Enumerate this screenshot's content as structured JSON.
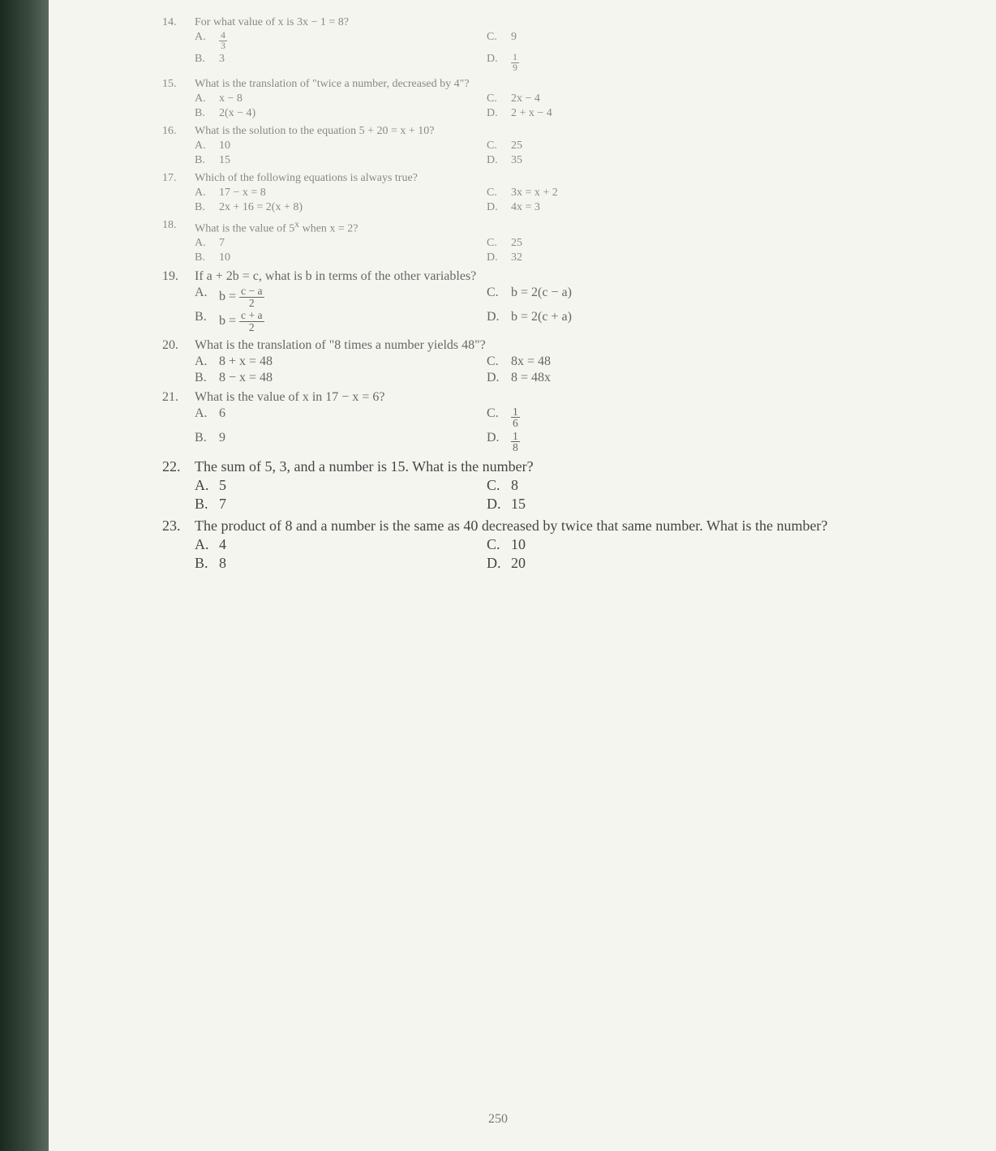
{
  "page_number": "250",
  "questions": [
    {
      "num": "14.",
      "text": "For what value of x is 3x − 1 = 8?",
      "choices": {
        "A": {
          "type": "frac",
          "num": "4",
          "den": "3"
        },
        "B": {
          "type": "text",
          "val": "3"
        },
        "C": {
          "type": "text",
          "val": "9"
        },
        "D": {
          "type": "frac",
          "num": "1",
          "den": "9"
        }
      },
      "class": "early"
    },
    {
      "num": "15.",
      "text": "What is the translation of \"twice a number, decreased by 4\"?",
      "choices": {
        "A": {
          "type": "text",
          "val": "x − 8"
        },
        "B": {
          "type": "text",
          "val": "2(x − 4)"
        },
        "C": {
          "type": "text",
          "val": "2x − 4"
        },
        "D": {
          "type": "text",
          "val": "2 + x − 4"
        }
      },
      "class": "early"
    },
    {
      "num": "16.",
      "text": "What is the solution to the equation 5 + 20 = x + 10?",
      "choices": {
        "A": {
          "type": "text",
          "val": "10"
        },
        "B": {
          "type": "text",
          "val": "15"
        },
        "C": {
          "type": "text",
          "val": "25"
        },
        "D": {
          "type": "text",
          "val": "35"
        }
      },
      "class": "early"
    },
    {
      "num": "17.",
      "text": "Which of the following equations is always true?",
      "choices": {
        "A": {
          "type": "text",
          "val": "17 − x = 8"
        },
        "B": {
          "type": "text",
          "val": "2x + 16 = 2(x + 8)"
        },
        "C": {
          "type": "text",
          "val": "3x = x + 2"
        },
        "D": {
          "type": "text",
          "val": "4x = 3"
        }
      },
      "class": "early"
    },
    {
      "num": "18.",
      "text_html": "What is the value of 5<sup>x</sup> when x = 2?",
      "choices": {
        "A": {
          "type": "text",
          "val": "7"
        },
        "B": {
          "type": "text",
          "val": "10"
        },
        "C": {
          "type": "text",
          "val": "25"
        },
        "D": {
          "type": "text",
          "val": "32"
        }
      },
      "class": "early"
    },
    {
      "num": "19.",
      "text": "If a + 2b = c, what is b in terms of the other variables?",
      "choices": {
        "A": {
          "type": "expr_frac",
          "prefix": "b = ",
          "num": "c − a",
          "den": "2"
        },
        "B": {
          "type": "expr_frac",
          "prefix": "b = ",
          "num": "c + a",
          "den": "2"
        },
        "C": {
          "type": "text",
          "val": "b = 2(c − a)"
        },
        "D": {
          "type": "text",
          "val": "b = 2(c + a)"
        }
      },
      "class": "mid"
    },
    {
      "num": "20.",
      "text": "What is the translation of \"8 times a number yields 48\"?",
      "choices": {
        "A": {
          "type": "text",
          "val": "8 + x = 48"
        },
        "B": {
          "type": "text",
          "val": "8 − x = 48"
        },
        "C": {
          "type": "text",
          "val": "8x = 48"
        },
        "D": {
          "type": "text",
          "val": "8 = 48x"
        }
      },
      "class": "mid"
    },
    {
      "num": "21.",
      "text": "What is the value of x in 17 − x = 6?",
      "choices": {
        "A": {
          "type": "text",
          "val": "6"
        },
        "B": {
          "type": "text",
          "val": "9"
        },
        "C": {
          "type": "frac",
          "num": "1",
          "den": "6"
        },
        "D": {
          "type": "frac",
          "num": "1",
          "den": "8"
        }
      },
      "class": "mid"
    },
    {
      "num": "22.",
      "text": "The sum of 5, 3, and a number is 15. What is the number?",
      "choices": {
        "A": {
          "type": "text",
          "val": "5"
        },
        "B": {
          "type": "text",
          "val": "7"
        },
        "C": {
          "type": "text",
          "val": "8"
        },
        "D": {
          "type": "text",
          "val": "15"
        }
      },
      "class": "late"
    },
    {
      "num": "23.",
      "text": "The product of 8 and a number is the same as 40 decreased by twice that same number. What is the number?",
      "choices": {
        "A": {
          "type": "text",
          "val": "4"
        },
        "B": {
          "type": "text",
          "val": "8"
        },
        "C": {
          "type": "text",
          "val": "10"
        },
        "D": {
          "type": "text",
          "val": "20"
        }
      },
      "class": "late"
    }
  ]
}
